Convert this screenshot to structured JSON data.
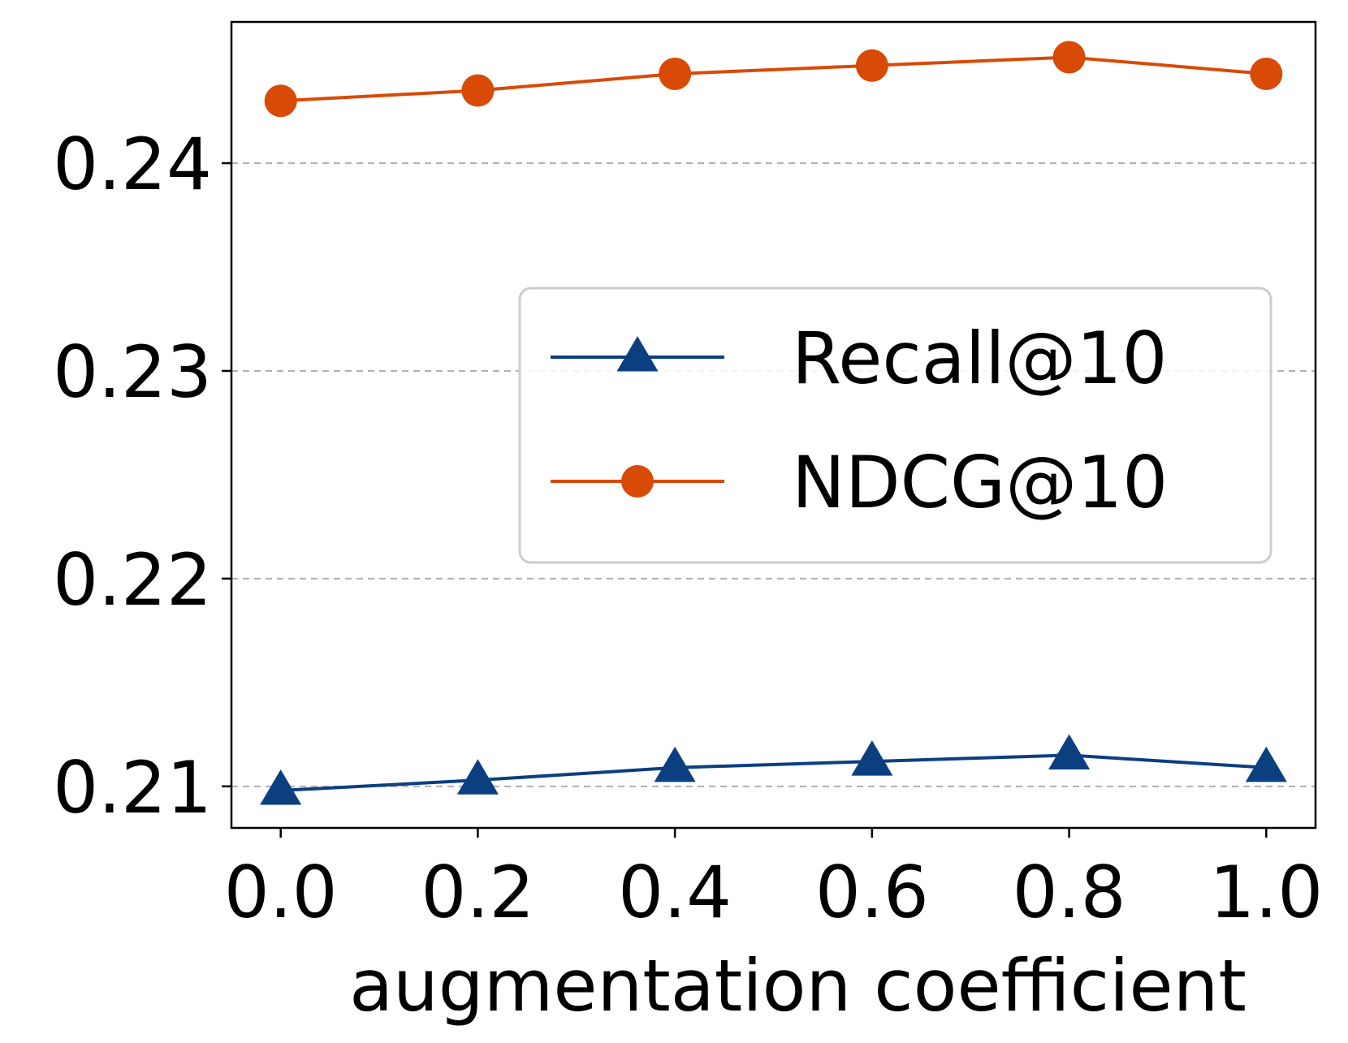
{
  "chart_data": {
    "type": "line",
    "x": [
      0.0,
      0.2,
      0.4,
      0.6,
      0.8,
      1.0
    ],
    "x_tick_labels": [
      "0.0",
      "0.2",
      "0.4",
      "0.6",
      "0.8",
      "1.0"
    ],
    "y_tick_values": [
      0.21,
      0.22,
      0.23,
      0.24
    ],
    "y_tick_labels": [
      "0.21",
      "0.22",
      "0.23",
      "0.24"
    ],
    "xlabel": "augmentation coefficient",
    "ylabel": "",
    "xlim": [
      -0.05,
      1.05
    ],
    "ylim": [
      0.208,
      0.2468
    ],
    "grid": "horizontal dashed",
    "legend_position": "center-right",
    "series": [
      {
        "name": "Recall@10",
        "marker": "triangle",
        "color": "#0b3f80",
        "values": [
          0.2098,
          0.2103,
          0.2109,
          0.2112,
          0.2115,
          0.2109
        ]
      },
      {
        "name": "NDCG@10",
        "marker": "circle",
        "color": "#d84a05",
        "values": [
          0.243,
          0.2435,
          0.2443,
          0.2447,
          0.2451,
          0.2443
        ]
      }
    ]
  }
}
